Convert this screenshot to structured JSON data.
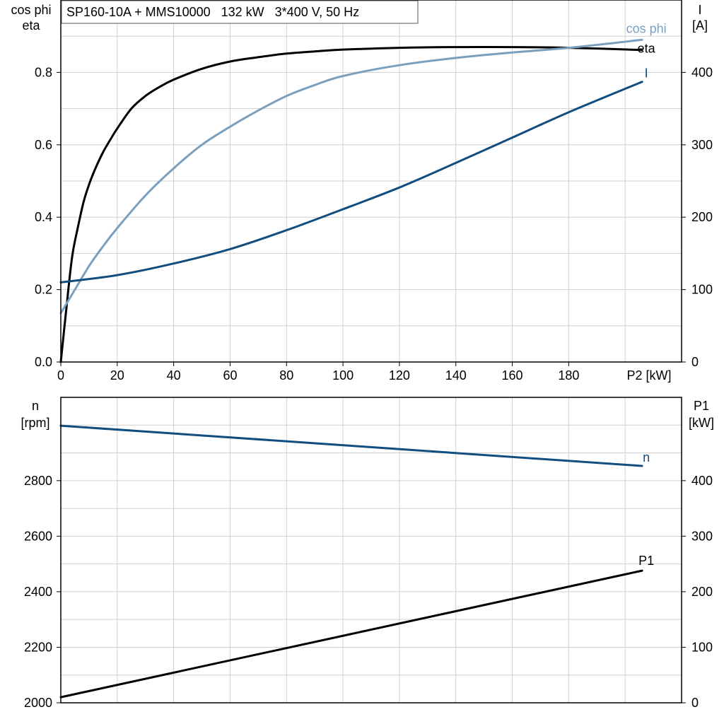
{
  "chart_data": [
    {
      "type": "line",
      "title": "SP160-10A + MMS10000   132 kW   3*400 V, 50 Hz",
      "x": {
        "label": "P2 [kW]",
        "lim": [
          0,
          220
        ],
        "ticks": [
          0,
          20,
          40,
          60,
          80,
          100,
          120,
          140,
          160,
          180
        ]
      },
      "y_left": {
        "label_line1": "cos phi",
        "label_line2": "eta",
        "lim": [
          0,
          1.0
        ],
        "ticks": [
          0.0,
          0.2,
          0.4,
          0.6,
          0.8
        ],
        "tick_labels": [
          "0.0",
          "0.2",
          "0.4",
          "0.6",
          "0.8"
        ]
      },
      "y_right": {
        "label_line1": "I",
        "label_line2": "[A]",
        "lim": [
          0,
          500
        ],
        "ticks": [
          0,
          100,
          200,
          300,
          400
        ],
        "tick_labels": [
          "0",
          "100",
          "200",
          "300",
          "400"
        ]
      },
      "grid": true,
      "series": [
        {
          "name": "eta",
          "axis": "left",
          "color": "#000000",
          "x": [
            0,
            2,
            4,
            6,
            8,
            10,
            12,
            15,
            18,
            20,
            25,
            30,
            35,
            40,
            50,
            60,
            70,
            80,
            90,
            100,
            120,
            140,
            160,
            180,
            206
          ],
          "y": [
            0.0,
            0.15,
            0.29,
            0.37,
            0.44,
            0.49,
            0.53,
            0.58,
            0.62,
            0.645,
            0.7,
            0.735,
            0.76,
            0.78,
            0.81,
            0.83,
            0.842,
            0.852,
            0.858,
            0.863,
            0.868,
            0.87,
            0.87,
            0.868,
            0.862
          ]
        },
        {
          "name": "cos phi",
          "axis": "left",
          "color": "#7a9fbf",
          "x": [
            0,
            5,
            10,
            15,
            20,
            30,
            40,
            50,
            60,
            70,
            80,
            90,
            100,
            120,
            140,
            160,
            180,
            206
          ],
          "y": [
            0.135,
            0.2,
            0.265,
            0.32,
            0.37,
            0.46,
            0.535,
            0.6,
            0.65,
            0.695,
            0.735,
            0.765,
            0.79,
            0.82,
            0.84,
            0.855,
            0.868,
            0.89
          ]
        },
        {
          "name": "I",
          "axis": "right",
          "color": "#124d80",
          "x": [
            0,
            20,
            40,
            60,
            80,
            100,
            120,
            140,
            160,
            180,
            206
          ],
          "y": [
            110,
            120,
            136,
            156,
            182,
            211,
            241,
            275,
            310,
            345,
            387
          ]
        }
      ]
    },
    {
      "type": "line",
      "x": {
        "lim": [
          0,
          220
        ]
      },
      "y_left": {
        "label_line1": "n",
        "label_line2": "[rpm]",
        "lim": [
          2000,
          3100
        ],
        "ticks": [
          2000,
          2200,
          2400,
          2600,
          2800
        ],
        "tick_labels": [
          "2000",
          "2200",
          "2400",
          "2600",
          "2800"
        ]
      },
      "y_right": {
        "label_line1": "P1",
        "label_line2": "[kW]",
        "lim": [
          0,
          550
        ],
        "ticks": [
          0,
          100,
          200,
          300,
          400
        ],
        "tick_labels": [
          "0",
          "100",
          "200",
          "300",
          "400"
        ]
      },
      "grid": true,
      "series": [
        {
          "name": "n",
          "axis": "left",
          "color": "#124d80",
          "x": [
            0,
            206
          ],
          "y": [
            2998,
            2853
          ]
        },
        {
          "name": "P1",
          "axis": "right",
          "color": "#000000",
          "x": [
            0,
            206
          ],
          "y": [
            10,
            238
          ]
        }
      ]
    }
  ]
}
